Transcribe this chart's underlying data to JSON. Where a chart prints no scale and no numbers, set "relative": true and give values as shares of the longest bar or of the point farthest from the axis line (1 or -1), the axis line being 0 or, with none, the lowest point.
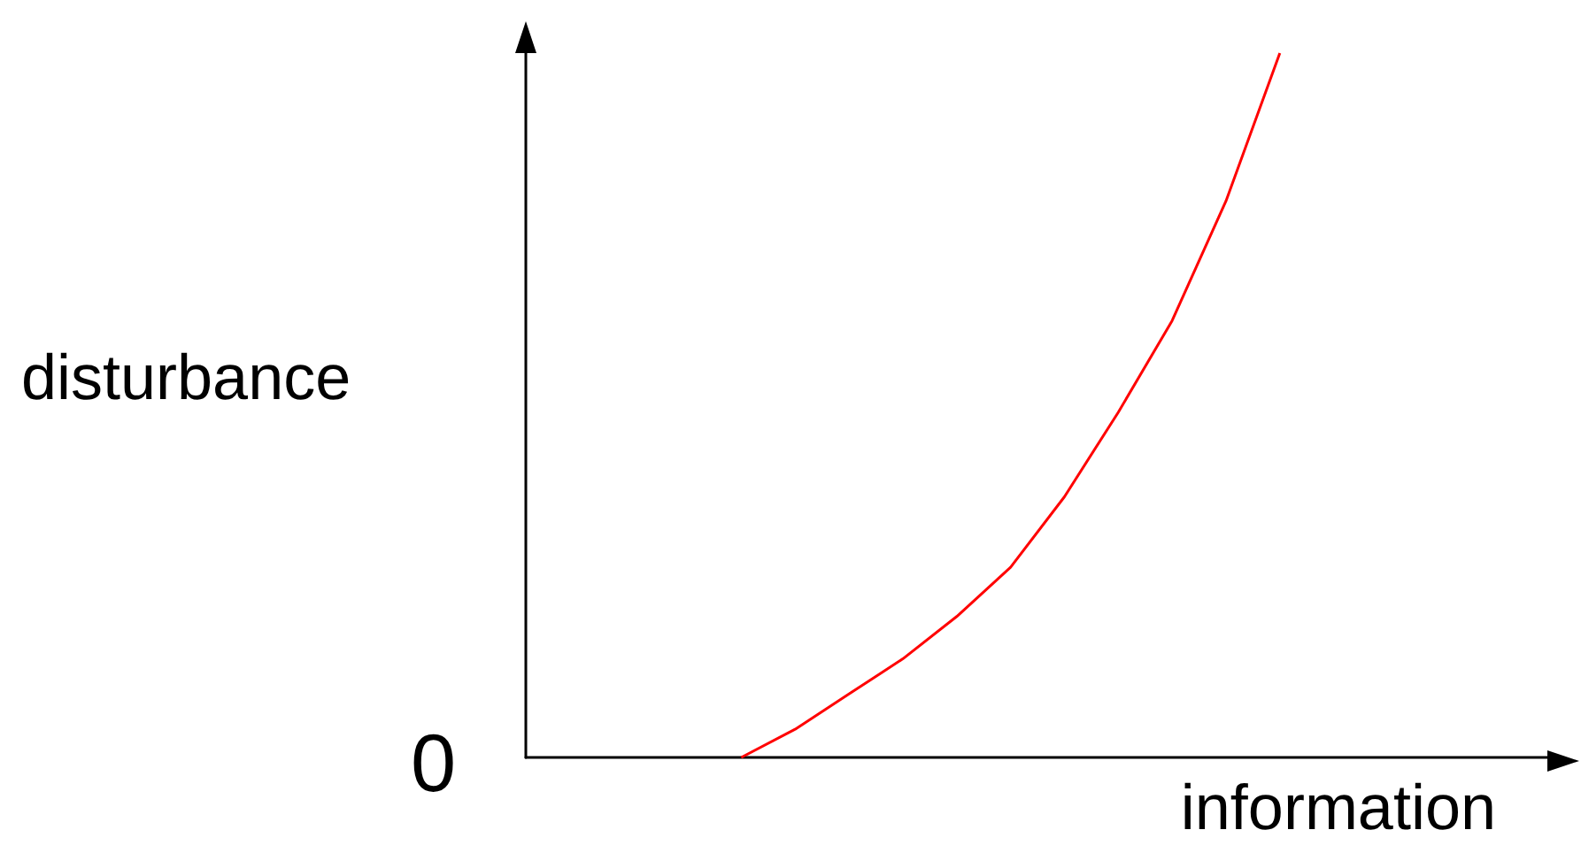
{
  "chart_data": {
    "type": "line",
    "relative": true,
    "xlabel": "information",
    "ylabel": "disturbance",
    "annotations": [
      "0"
    ],
    "categories": [
      null,
      null,
      null,
      null,
      null,
      null,
      null,
      null,
      null,
      null,
      null,
      null,
      null,
      null,
      null,
      null,
      null,
      null,
      null,
      null
    ],
    "series": [
      {
        "color": "#ff0000",
        "values": [
          null,
          null,
          null,
          null,
          0,
          0.04,
          0.09,
          0.14,
          0.2,
          0.27,
          0.37,
          0.49,
          0.62,
          0.79,
          1,
          null,
          null,
          null,
          null,
          null
        ]
      }
    ],
    "grid": false,
    "marker": "none",
    "line_style": "solid"
  }
}
